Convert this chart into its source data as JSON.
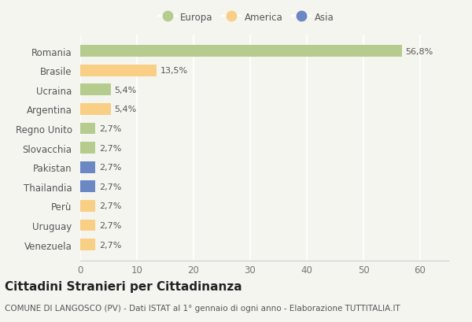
{
  "countries": [
    "Venezuela",
    "Uruguay",
    "Perù",
    "Thailandia",
    "Pakistan",
    "Slovacchia",
    "Regno Unito",
    "Argentina",
    "Ucraina",
    "Brasile",
    "Romania"
  ],
  "values": [
    2.7,
    2.7,
    2.7,
    2.7,
    2.7,
    2.7,
    2.7,
    5.4,
    5.4,
    13.5,
    56.8
  ],
  "labels": [
    "2,7%",
    "2,7%",
    "2,7%",
    "2,7%",
    "2,7%",
    "2,7%",
    "2,7%",
    "5,4%",
    "5,4%",
    "13,5%",
    "56,8%"
  ],
  "colors": [
    "#f9cf85",
    "#f9cf85",
    "#f9cf85",
    "#6b87c4",
    "#6b87c4",
    "#b5cc8e",
    "#b5cc8e",
    "#f9cf85",
    "#b5cc8e",
    "#f9cf85",
    "#b5cc8e"
  ],
  "legend": [
    {
      "label": "Europa",
      "color": "#b5cc8e"
    },
    {
      "label": "America",
      "color": "#f9cf85"
    },
    {
      "label": "Asia",
      "color": "#6b87c4"
    }
  ],
  "title": "Cittadini Stranieri per Cittadinanza",
  "subtitle": "COMUNE DI LANGOSCO (PV) - Dati ISTAT al 1° gennaio di ogni anno - Elaborazione TUTTITALIA.IT",
  "xlim": [
    0,
    65
  ],
  "xticks": [
    0,
    10,
    20,
    30,
    40,
    50,
    60
  ],
  "background_color": "#f5f5f0",
  "bar_height": 0.6,
  "grid_color": "#ffffff",
  "label_fontsize": 8,
  "title_fontsize": 11,
  "subtitle_fontsize": 7.5,
  "ytick_fontsize": 8.5,
  "xtick_fontsize": 8.5
}
